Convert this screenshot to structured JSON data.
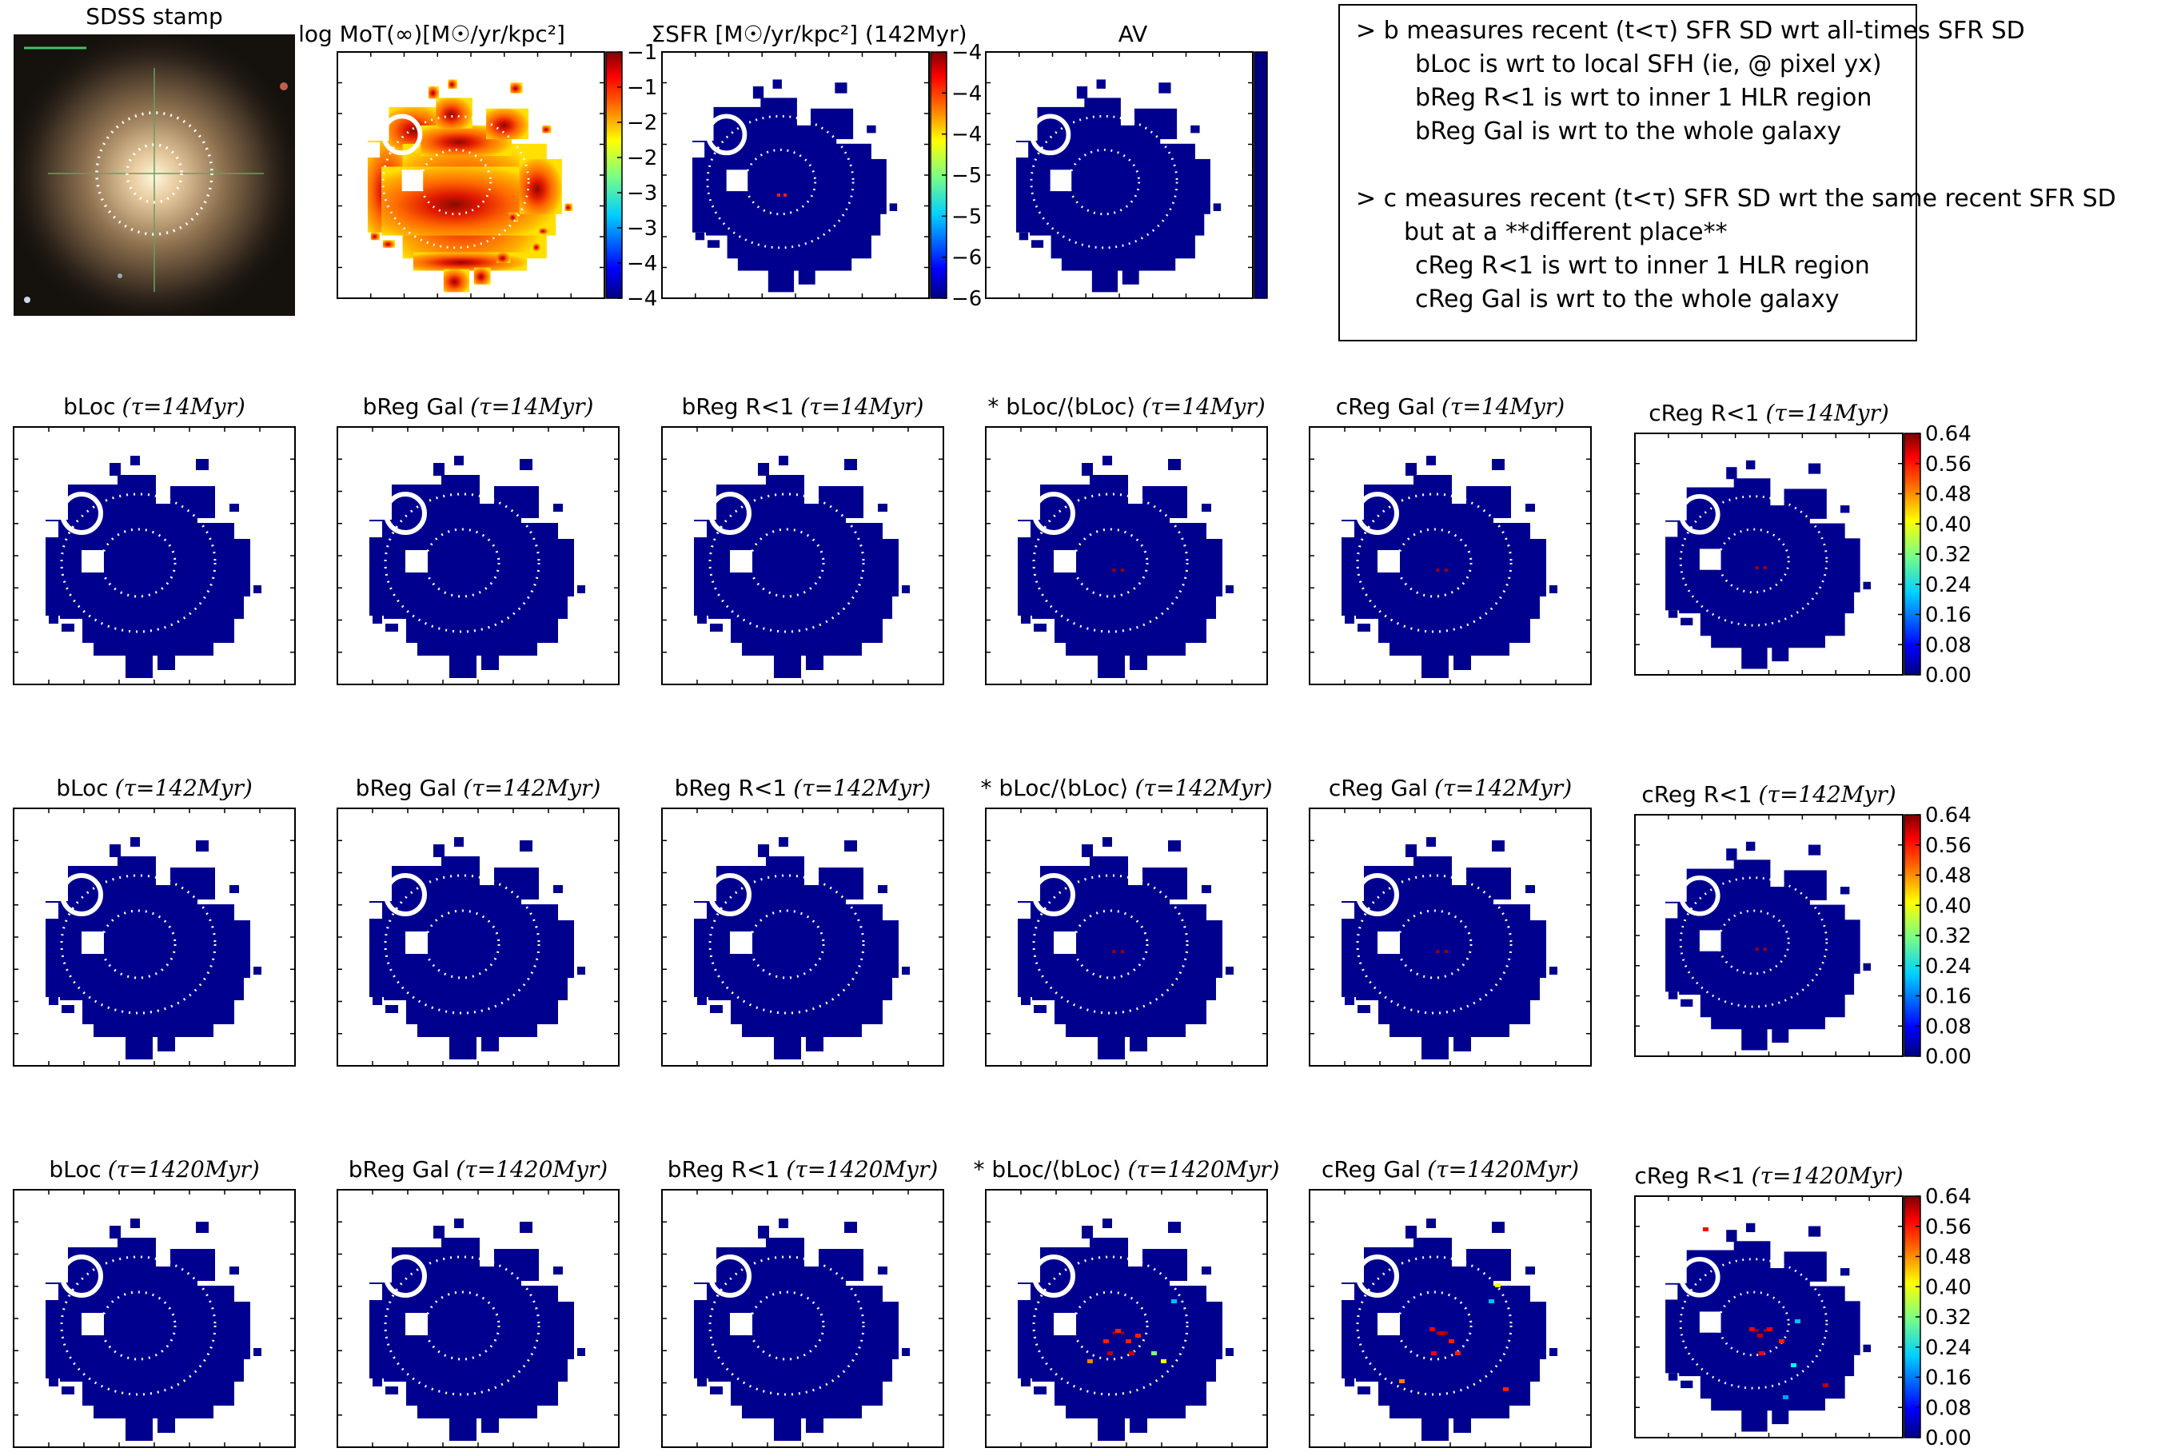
{
  "colors": {
    "map_fill": "#00008f",
    "axes": "#000000",
    "background": "#ffffff",
    "effective_radius_marker": "#ffffff",
    "colormap": [
      "#00007f",
      "#0000ff",
      "#007fff",
      "#00ffff",
      "#7fff7f",
      "#ffff00",
      "#ff7f00",
      "#ff0000",
      "#7f0000"
    ],
    "mot_colormap": [
      "#ffff00",
      "#ff9900",
      "#ff0000",
      "#800000"
    ]
  },
  "top_panels": {
    "sdss": {
      "title": "SDSS stamp"
    },
    "mot": {
      "title": "log MoT(∞)[M☉/yr/kpc²]",
      "cbar_ticks": [
        "−1",
        "−1",
        "−2",
        "−2",
        "−3",
        "−3",
        "−4",
        "−4"
      ]
    },
    "sfr": {
      "title": "ΣSFR [M☉/yr/kpc²] (142Myr)",
      "cbar_ticks": [
        "−4",
        "−4",
        "−4",
        "−5",
        "−5",
        "−6",
        "−6"
      ]
    },
    "av": {
      "title": "AV",
      "cbar_ticks": []
    }
  },
  "notes": {
    "lines": [
      "> b measures recent (t<τ) SFR SD wrt all-times SFR SD",
      "bLoc is wrt to local SFH (ie, @ pixel yx)",
      "bReg R<1 is wrt to inner 1 HLR region",
      "bReg Gal is wrt to the whole galaxy",
      "> c measures recent (t<τ) SFR SD wrt the same recent SFR SD",
      "but at a **different place**",
      "cReg R<1 is wrt to inner 1 HLR region",
      "cReg Gal is wrt to the whole galaxy"
    ]
  },
  "grid": {
    "column_titles": [
      "bLoc",
      "bReg Gal",
      "bReg R<1",
      "* bLoc/⟨bLoc⟩",
      "cReg Gal",
      "cReg R<1"
    ],
    "row_taus": [
      "(τ=14Myr)",
      "(τ=142Myr)",
      "(τ=1420Myr)"
    ],
    "cbar_ticks": [
      "0.64",
      "0.56",
      "0.48",
      "0.40",
      "0.32",
      "0.24",
      "0.16",
      "0.08",
      "0.00"
    ]
  },
  "chart_data": [
    {
      "type": "heatmap",
      "title": "SDSS stamp",
      "image": "galaxy color composite"
    },
    {
      "type": "heatmap",
      "title": "log MoT(∞)[M☉/yr/kpc²]",
      "colorbar_ticks": [
        "−1",
        "−1",
        "−2",
        "−2",
        "−3",
        "−3",
        "−4",
        "−4"
      ]
    },
    {
      "type": "heatmap",
      "title": "ΣSFR [M☉/yr/kpc²] (142Myr)",
      "colorbar_ticks": [
        "−4",
        "−4",
        "−4",
        "−5",
        "−5",
        "−6",
        "−6"
      ]
    },
    {
      "type": "heatmap",
      "title": "AV"
    },
    {
      "type": "heatmap",
      "title": "bLoc (τ=14Myr)"
    },
    {
      "type": "heatmap",
      "title": "bReg Gal (τ=14Myr)"
    },
    {
      "type": "heatmap",
      "title": "bReg R<1 (τ=14Myr)"
    },
    {
      "type": "heatmap",
      "title": "* bLoc/⟨bLoc⟩(τ=14Myr)"
    },
    {
      "type": "heatmap",
      "title": "cReg Gal (τ=14Myr)"
    },
    {
      "type": "heatmap",
      "title": "cReg R<1 (τ=14Myr)",
      "colorbar_range": [
        0.0,
        0.64
      ],
      "colorbar_ticks": [
        0.0,
        0.08,
        0.16,
        0.24,
        0.32,
        0.4,
        0.48,
        0.56,
        0.64
      ]
    },
    {
      "type": "heatmap",
      "title": "bLoc (τ=142Myr)"
    },
    {
      "type": "heatmap",
      "title": "bReg Gal (τ=142Myr)"
    },
    {
      "type": "heatmap",
      "title": "bReg R<1 (τ=142Myr)"
    },
    {
      "type": "heatmap",
      "title": "* bLoc/⟨bLoc⟩(τ=142Myr)"
    },
    {
      "type": "heatmap",
      "title": "cReg Gal (τ=142Myr)"
    },
    {
      "type": "heatmap",
      "title": "cReg R<1 (τ=142Myr)",
      "colorbar_range": [
        0.0,
        0.64
      ],
      "colorbar_ticks": [
        0.0,
        0.08,
        0.16,
        0.24,
        0.32,
        0.4,
        0.48,
        0.56,
        0.64
      ]
    },
    {
      "type": "heatmap",
      "title": "bLoc (τ=1420Myr)"
    },
    {
      "type": "heatmap",
      "title": "bReg Gal (τ=1420Myr)"
    },
    {
      "type": "heatmap",
      "title": "bReg R<1 (τ=1420Myr)"
    },
    {
      "type": "heatmap",
      "title": "* bLoc/⟨bLoc⟩(τ=1420Myr)"
    },
    {
      "type": "heatmap",
      "title": "cReg Gal (τ=1420Myr)"
    },
    {
      "type": "heatmap",
      "title": "cReg R<1 (τ=1420Myr)",
      "colorbar_range": [
        0.0,
        0.64
      ],
      "colorbar_ticks": [
        0.0,
        0.08,
        0.16,
        0.24,
        0.32,
        0.4,
        0.48,
        0.56,
        0.64
      ]
    }
  ]
}
